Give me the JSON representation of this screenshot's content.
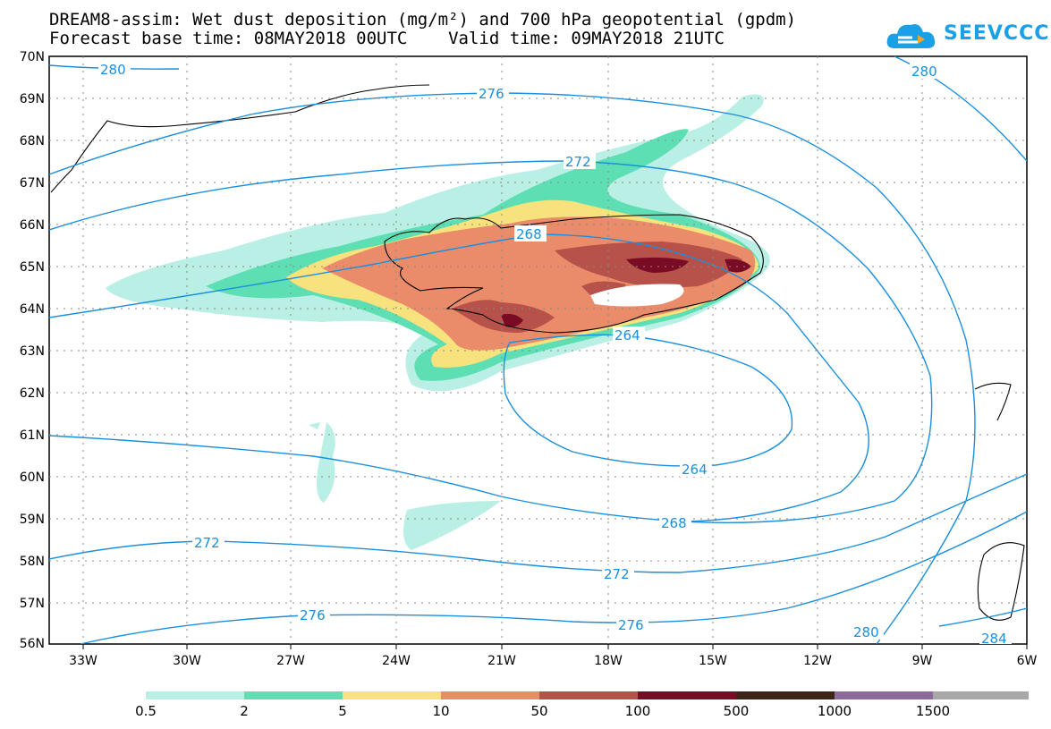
{
  "title": {
    "line1": "DREAM8-assim: Wet dust deposition (mg/m²) and 700 hPa geopotential (gpdm)",
    "line2": "Forecast base time: 08MAY2018 00UTC    Valid time: 09MAY2018 21UTC"
  },
  "logo": {
    "text": "SEEVCCC",
    "icon": "cloud-icon"
  },
  "axes": {
    "lat_labels": [
      "70N",
      "69N",
      "68N",
      "67N",
      "66N",
      "65N",
      "64N",
      "63N",
      "62N",
      "61N",
      "60N",
      "59N",
      "58N",
      "57N",
      "56N"
    ],
    "lon_labels": [
      "33W",
      "30W",
      "27W",
      "24W",
      "21W",
      "18W",
      "15W",
      "12W",
      "9W",
      "6W"
    ]
  },
  "contours": {
    "labels": [
      "280",
      "276",
      "272",
      "268",
      "264",
      "264",
      "268",
      "272",
      "276",
      "272",
      "276",
      "280",
      "284",
      "280"
    ]
  },
  "legend": {
    "colors": [
      "#b9efe5",
      "#5ddfb3",
      "#f7e27e",
      "#ea8c6a",
      "#b6524a",
      "#7a0b25",
      "#3e2418",
      "#8e6a9a",
      "#a8a8a8"
    ],
    "labels": [
      "0.5",
      "2",
      "5",
      "10",
      "50",
      "100",
      "500",
      "1000",
      "1500"
    ]
  },
  "colors": {
    "contour": "#1a8fe0",
    "coast": "#000000"
  }
}
